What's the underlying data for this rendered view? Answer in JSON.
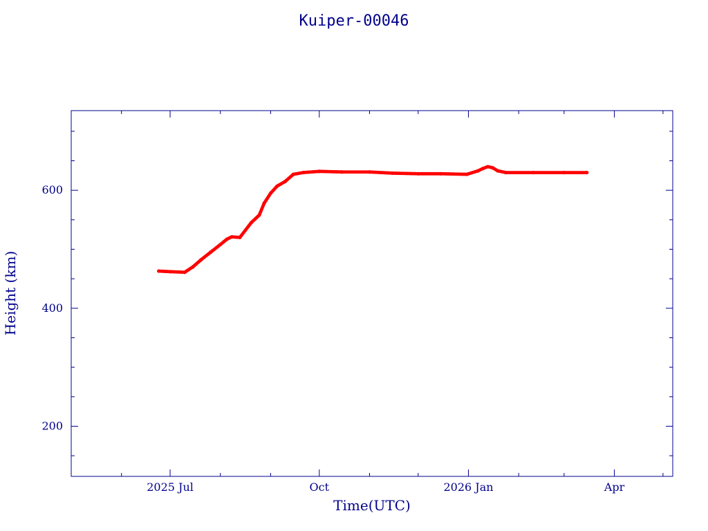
{
  "chart_data": {
    "type": "scatter",
    "title": "Kuiper-00046",
    "xlabel": "Time(UTC)",
    "ylabel": "Height (km)",
    "xlim": [
      "2025-05-01",
      "2026-05-07"
    ],
    "ylim": [
      115,
      735
    ],
    "x_ticks": [
      {
        "date": "2025-07-01",
        "label": "2025 Jul"
      },
      {
        "date": "2025-10-01",
        "label": "Oct"
      },
      {
        "date": "2026-01-01",
        "label": "2026 Jan"
      },
      {
        "date": "2026-04-01",
        "label": "Apr"
      }
    ],
    "y_ticks": [
      200,
      400,
      600
    ],
    "grid": false,
    "colors": {
      "axes": "#00008b",
      "text": "#00008b",
      "points": "#ff0000"
    },
    "series": [
      {
        "x": [
          "2025-06-24",
          "2025-07-01",
          "2025-07-10",
          "2025-07-15",
          "2025-07-20",
          "2025-07-26",
          "2025-08-01",
          "2025-08-05",
          "2025-08-08",
          "2025-08-13",
          "2025-08-20",
          "2025-08-25",
          "2025-08-28",
          "2025-09-01",
          "2025-09-05",
          "2025-09-10",
          "2025-09-15",
          "2025-09-21",
          "2025-10-01",
          "2025-10-15",
          "2025-11-01",
          "2025-11-15",
          "2025-12-01",
          "2025-12-15",
          "2025-12-31",
          "2026-01-07",
          "2026-01-10",
          "2026-01-13",
          "2026-01-16",
          "2026-01-19",
          "2026-01-24",
          "2026-02-10",
          "2026-03-01",
          "2026-03-15"
        ],
        "y": [
          463,
          462,
          461,
          470,
          482,
          495,
          508,
          517,
          521,
          520,
          545,
          558,
          578,
          595,
          607,
          615,
          627,
          630,
          632,
          631,
          631,
          629,
          628,
          628,
          627,
          633,
          637,
          640,
          638,
          633,
          630,
          630,
          630,
          630
        ]
      }
    ]
  }
}
